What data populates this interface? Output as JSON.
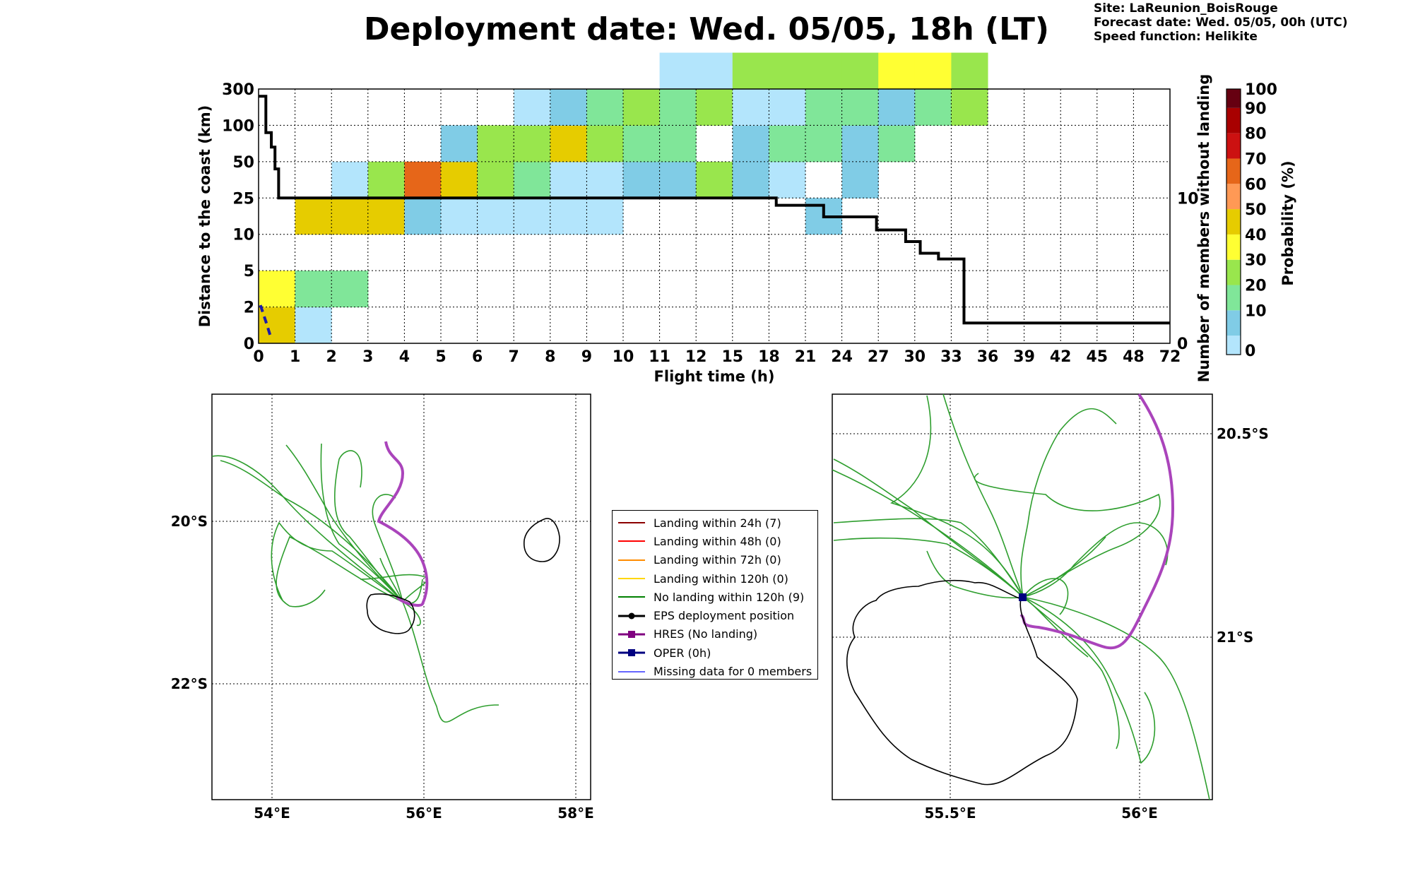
{
  "header": {
    "title": "Deployment date: Wed. 05/05, 18h (LT)",
    "site": "Site: LaReunion_BoisRouge",
    "forecast": "Forecast date: Wed. 05/05, 00h (UTC)",
    "speed": "Speed function: Helikite"
  },
  "chart_data": {
    "type": "heatmap",
    "xlabel": "Flight time (h)",
    "ylabel": "Distance to the coast (km)",
    "y2label": "Number of members without landing",
    "colorbar_label": "Probability (%)",
    "x_ticks": [
      "0",
      "1",
      "2",
      "3",
      "4",
      "5",
      "6",
      "7",
      "8",
      "9",
      "10",
      "11",
      "12",
      "15",
      "18",
      "21",
      "24",
      "27",
      "30",
      "33",
      "36",
      "39",
      "42",
      "45",
      "48",
      "72"
    ],
    "y_ticks": [
      "0",
      "2",
      "5",
      "10",
      "25",
      "50",
      "100",
      "300"
    ],
    "y2_ticks": [
      "0",
      "10"
    ],
    "colorbar_ticks": [
      "0",
      "10",
      "20",
      "30",
      "40",
      "50",
      "60",
      "70",
      "80",
      "90",
      "100"
    ],
    "colorbar_colors": [
      "#b3e5fc",
      "#80cce6",
      "#80e699",
      "#99e64d",
      "#ffff33",
      "#e6cc00",
      "#ff9955",
      "#e66619",
      "#cc1111",
      "#a80000",
      "#660011"
    ],
    "grid": true,
    "cells": [
      {
        "x": 0,
        "y": 0,
        "p": 50
      },
      {
        "x": 1,
        "y": 0,
        "p": 0
      },
      {
        "x": 0,
        "y": 1,
        "p": 40
      },
      {
        "x": 1,
        "y": 1,
        "p": 20
      },
      {
        "x": 2,
        "y": 1,
        "p": 20
      },
      {
        "x": 1,
        "y": 3,
        "p": 50
      },
      {
        "x": 2,
        "y": 3,
        "p": 50
      },
      {
        "x": 3,
        "y": 3,
        "p": 50
      },
      {
        "x": 4,
        "y": 3,
        "p": 10
      },
      {
        "x": 5,
        "y": 3,
        "p": 0
      },
      {
        "x": 6,
        "y": 3,
        "p": 0
      },
      {
        "x": 7,
        "y": 3,
        "p": 0
      },
      {
        "x": 8,
        "y": 3,
        "p": 0
      },
      {
        "x": 9,
        "y": 3,
        "p": 0
      },
      {
        "x": 15,
        "y": 3,
        "p": 10
      },
      {
        "x": 2,
        "y": 4,
        "p": 0
      },
      {
        "x": 3,
        "y": 4,
        "p": 30
      },
      {
        "x": 4,
        "y": 4,
        "p": 70
      },
      {
        "x": 5,
        "y": 4,
        "p": 50
      },
      {
        "x": 6,
        "y": 4,
        "p": 30
      },
      {
        "x": 7,
        "y": 4,
        "p": 20
      },
      {
        "x": 8,
        "y": 4,
        "p": 0
      },
      {
        "x": 9,
        "y": 4,
        "p": 0
      },
      {
        "x": 10,
        "y": 4,
        "p": 10
      },
      {
        "x": 11,
        "y": 4,
        "p": 10
      },
      {
        "x": 12,
        "y": 4,
        "p": 30
      },
      {
        "x": 13,
        "y": 4,
        "p": 10
      },
      {
        "x": 14,
        "y": 4,
        "p": 0
      },
      {
        "x": 16,
        "y": 4,
        "p": 10
      },
      {
        "x": 5,
        "y": 5,
        "p": 10
      },
      {
        "x": 6,
        "y": 5,
        "p": 30
      },
      {
        "x": 7,
        "y": 5,
        "p": 30
      },
      {
        "x": 8,
        "y": 5,
        "p": 50
      },
      {
        "x": 9,
        "y": 5,
        "p": 30
      },
      {
        "x": 10,
        "y": 5,
        "p": 20
      },
      {
        "x": 11,
        "y": 5,
        "p": 20
      },
      {
        "x": 13,
        "y": 5,
        "p": 10
      },
      {
        "x": 14,
        "y": 5,
        "p": 20
      },
      {
        "x": 15,
        "y": 5,
        "p": 20
      },
      {
        "x": 16,
        "y": 5,
        "p": 10
      },
      {
        "x": 17,
        "y": 5,
        "p": 20
      },
      {
        "x": 7,
        "y": 6,
        "p": 0
      },
      {
        "x": 8,
        "y": 6,
        "p": 10
      },
      {
        "x": 9,
        "y": 6,
        "p": 20
      },
      {
        "x": 10,
        "y": 6,
        "p": 30
      },
      {
        "x": 11,
        "y": 6,
        "p": 20
      },
      {
        "x": 12,
        "y": 6,
        "p": 30
      },
      {
        "x": 13,
        "y": 6,
        "p": 0
      },
      {
        "x": 14,
        "y": 6,
        "p": 0
      },
      {
        "x": 15,
        "y": 6,
        "p": 20
      },
      {
        "x": 16,
        "y": 6,
        "p": 20
      },
      {
        "x": 17,
        "y": 6,
        "p": 10
      },
      {
        "x": 18,
        "y": 6,
        "p": 20
      },
      {
        "x": 19,
        "y": 6,
        "p": 30
      },
      {
        "x": 11,
        "y": 7,
        "p": 0
      },
      {
        "x": 12,
        "y": 7,
        "p": 0
      },
      {
        "x": 13,
        "y": 7,
        "p": 30
      },
      {
        "x": 14,
        "y": 7,
        "p": 30
      },
      {
        "x": 15,
        "y": 7,
        "p": 30
      },
      {
        "x": 16,
        "y": 7,
        "p": 30
      },
      {
        "x": 17,
        "y": 7,
        "p": 40
      },
      {
        "x": 18,
        "y": 7,
        "p": 40
      },
      {
        "x": 19,
        "y": 7,
        "p": 30
      }
    ],
    "members_without_landing_step": [
      [
        0,
        17
      ],
      [
        0.1,
        17
      ],
      [
        0.2,
        14.5
      ],
      [
        0.35,
        13.5
      ],
      [
        0.45,
        12
      ],
      [
        0.55,
        10
      ],
      [
        13.6,
        10
      ],
      [
        14.2,
        9.5
      ],
      [
        15.5,
        8.7
      ],
      [
        16.95,
        7.8
      ],
      [
        17.75,
        7
      ],
      [
        18.15,
        6.2
      ],
      [
        18.65,
        5.8
      ],
      [
        19.35,
        1.4
      ],
      [
        25,
        1.4
      ]
    ],
    "oper_dashed_track": [
      [
        0.05,
        1.05
      ],
      [
        0.2,
        0.6
      ],
      [
        0.35,
        0.12
      ]
    ]
  },
  "maps": {
    "left": {
      "x_labels": [
        "54°E",
        "56°E",
        "58°E"
      ],
      "y_labels": [
        "20°S",
        "22°S"
      ]
    },
    "right": {
      "x_labels": [
        "55.5°E",
        "56°E"
      ],
      "y_labels": [
        "20.5°S",
        "21°S"
      ]
    }
  },
  "legend": [
    {
      "label": "Landing within 24h (7)",
      "color": "#8b0000",
      "sym": "line"
    },
    {
      "label": "Landing within 48h (0)",
      "color": "#ff0000",
      "sym": "line"
    },
    {
      "label": "Landing within 72h (0)",
      "color": "#ff8c00",
      "sym": "line"
    },
    {
      "label": "Landing within 120h (0)",
      "color": "#ffd700",
      "sym": "line"
    },
    {
      "label": "No landing within 120h (9)",
      "color": "#008000",
      "sym": "line"
    },
    {
      "label": "EPS deployment position",
      "color": "#000000",
      "sym": "dot"
    },
    {
      "label": "HRES (No landing)",
      "color": "#800080",
      "sym": "square"
    },
    {
      "label": "OPER (0h)",
      "color": "#000080",
      "sym": "square"
    },
    {
      "label": "Missing data for 0 members",
      "color": "#6666ff",
      "sym": "line"
    }
  ]
}
